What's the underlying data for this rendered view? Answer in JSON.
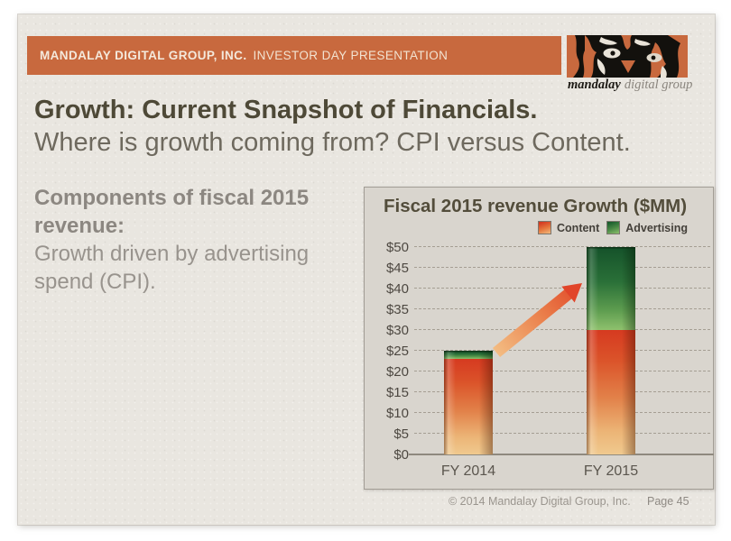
{
  "slide": {
    "header": {
      "brand": "MANDALAY DIGITAL GROUP, INC.",
      "tagline": "INVESTOR DAY PRESENTATION",
      "bar_color": "#C8693E"
    },
    "logo": {
      "word_main": "mandalay",
      "word_rest": "digital group"
    },
    "title": "Growth: Current Snapshot of Financials.",
    "subtitle": "Where is growth coming from? CPI versus Content.",
    "body": {
      "lead": "Components of fiscal 2015 revenue:",
      "detail": "Growth driven by advertising spend (CPI)."
    },
    "footer": {
      "copyright": "© 2014 Mandalay Digital Group, Inc.",
      "page": "Page 45"
    },
    "colors": {
      "accent_orange": "#C8693E",
      "title_text": "#4E4937",
      "panel_background": "#D9D5CE"
    }
  },
  "chart_data": {
    "type": "bar",
    "stacked": true,
    "title": "Fiscal 2015 revenue Growth ($MM)",
    "categories": [
      "FY 2014",
      "FY 2015"
    ],
    "series": [
      {
        "name": "Content",
        "values": [
          23,
          30
        ],
        "color": "#D8472A"
      },
      {
        "name": "Advertising",
        "values": [
          2,
          20
        ],
        "color": "#2E7A3C"
      }
    ],
    "totals": [
      25,
      50
    ],
    "ylim": [
      0,
      50
    ],
    "ytick_step": 5,
    "ytick_prefix": "$",
    "grid": "horizontal-dashed",
    "legend_position": "top-right",
    "annotation": "orange gradient arrow pointing up from FY 2014 bar top to FY 2015 bar top"
  }
}
